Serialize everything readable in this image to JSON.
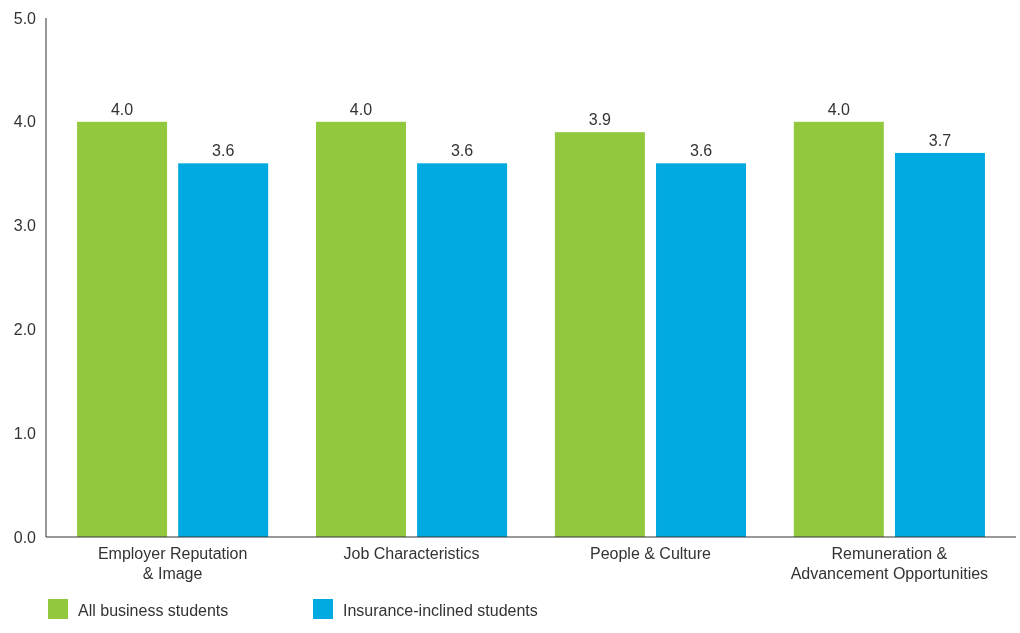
{
  "chart_data": {
    "type": "bar",
    "categories": [
      "Employer Reputation\n& Image",
      "Job Characteristics",
      "People & Culture",
      "Remuneration &\nAdvancement Opportunities"
    ],
    "series": [
      {
        "name": "All business students",
        "color": "#92c83e",
        "values": [
          4.0,
          4.0,
          3.9,
          4.0
        ],
        "value_labels": [
          "4.0",
          "4.0",
          "3.9",
          "4.0"
        ]
      },
      {
        "name": "Insurance-inclined students",
        "color": "#00a9e0",
        "values": [
          3.6,
          3.6,
          3.6,
          3.7
        ],
        "value_labels": [
          "3.6",
          "3.6",
          "3.6",
          "3.7"
        ]
      }
    ],
    "ylim": [
      0,
      5
    ],
    "yticks": [
      {
        "value": 0,
        "label": "0.0"
      },
      {
        "value": 1,
        "label": "1.0"
      },
      {
        "value": 2,
        "label": "2.0"
      },
      {
        "value": 3,
        "label": "3.0"
      },
      {
        "value": 4,
        "label": "4.0"
      },
      {
        "value": 5,
        "label": "5.0"
      }
    ],
    "legend": "bottom left",
    "grid": false
  }
}
